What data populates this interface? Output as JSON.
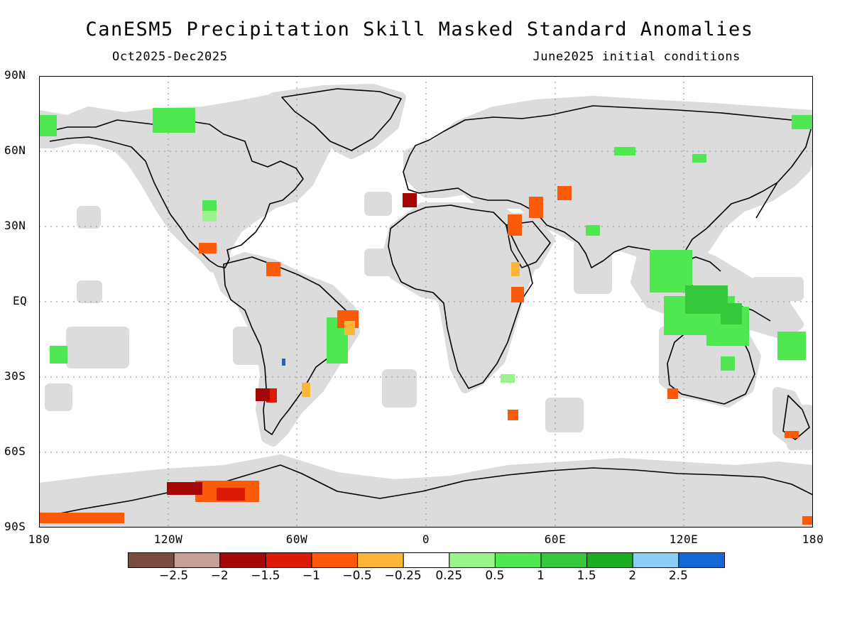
{
  "title": "CanESM5 Precipitation Skill Masked Standard Anomalies",
  "subtitle_left": "Oct2025-Dec2025",
  "subtitle_right": "June2025 initial conditions",
  "lat_labels": [
    "90N",
    "60N",
    "30N",
    "EQ",
    "30S",
    "60S",
    "90S"
  ],
  "lon_labels": [
    "180",
    "120W",
    "60W",
    "0",
    "60E",
    "120E",
    "180"
  ],
  "colorbar": {
    "colors": [
      "#7b4b3f",
      "#c9a096",
      "#a50606",
      "#dc1a08",
      "#fb5a09",
      "#fdb437",
      "#ffffff",
      "#98f58a",
      "#50e850",
      "#34c83a",
      "#1aac21",
      "#8ccdf5",
      "#1368d8"
    ],
    "labels": [
      "-2.5",
      "-2",
      "-1.5",
      "-1",
      "-0.5",
      "-0.25",
      "0.25",
      "0.5",
      "1",
      "1.5",
      "2",
      "2.5"
    ]
  },
  "colors": {
    "land_masked": "#dcdcdc",
    "ocean": "#ffffff",
    "coast": "#000000",
    "grid": "#888888"
  }
}
